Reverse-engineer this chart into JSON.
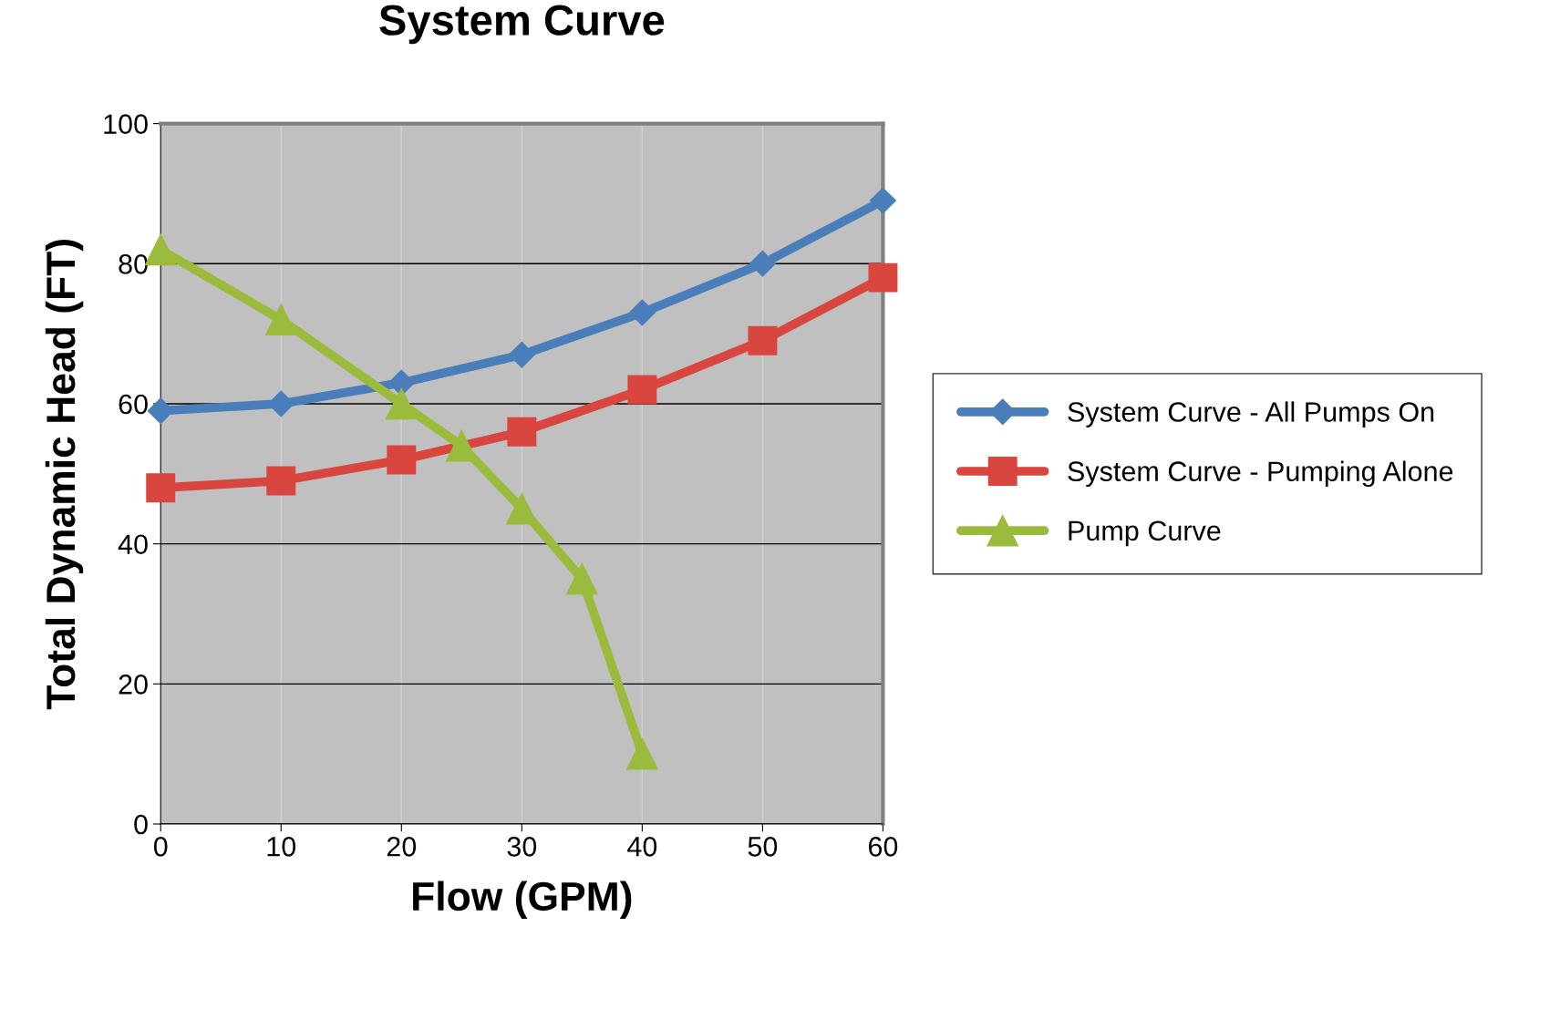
{
  "chart_data": {
    "type": "line",
    "title": "System Curve",
    "xlabel": "Flow (GPM)",
    "ylabel": "Total Dynamic Head (FT)",
    "xlim": [
      0,
      60
    ],
    "xticks": [
      0,
      10,
      20,
      30,
      40,
      50,
      60
    ],
    "ylim": [
      0,
      100
    ],
    "yticks": [
      0,
      20,
      40,
      60,
      80,
      100
    ],
    "grid": true,
    "legend": "right",
    "line_style": "solid",
    "series": [
      {
        "name": "System Curve - All Pumps On",
        "color": "#4a7ebb",
        "marker": "diamond",
        "x": [
          0,
          10,
          20,
          30,
          40,
          50,
          60
        ],
        "values": [
          59,
          60,
          63,
          67,
          73,
          80,
          89
        ]
      },
      {
        "name": "System Curve - Pumping Alone",
        "color": "#d9463f",
        "marker": "square",
        "x": [
          0,
          10,
          20,
          30,
          40,
          50,
          60
        ],
        "values": [
          48,
          49,
          52,
          56,
          62,
          69,
          78
        ]
      },
      {
        "name": "Pump Curve",
        "color": "#9bbb3c",
        "marker": "triangle",
        "x": [
          0,
          10,
          20,
          25,
          30,
          35,
          40
        ],
        "values": [
          82,
          72,
          60,
          54,
          45,
          35,
          10
        ]
      }
    ]
  }
}
